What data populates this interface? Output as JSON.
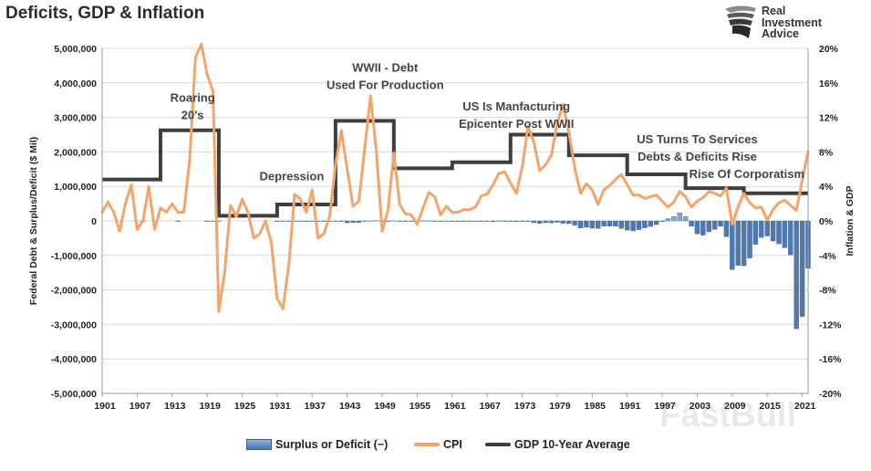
{
  "title": "Deficits, GDP & Inflation",
  "brand": {
    "line1": "Real",
    "line2": "Investment",
    "line3": "Advice",
    "logo_icon": "eagle-head-icon"
  },
  "watermark": "FastBull",
  "colors": {
    "cpi": "#F4A36A",
    "gdp": "#3E3E3E",
    "deficit": "#4E78AE",
    "surplus": "#7FA6D4",
    "grid": "#D9D9D9",
    "axis": "#9A9A9A"
  },
  "chart_data": {
    "type": "combo",
    "title": "Deficits, GDP & Inflation",
    "xlabel": "",
    "ylabel_left": "Federal Debt & Surplus/Deficit ($ Mil)",
    "ylabel_right": "Inflation & GDP",
    "ylim_left": [
      -5000000,
      5000000
    ],
    "ylim_right": [
      -20,
      20
    ],
    "x_range": [
      1901,
      2022
    ],
    "left_ticks": [
      {
        "value": 5000000,
        "label": "5,000,000"
      },
      {
        "value": 4000000,
        "label": "4,000,000"
      },
      {
        "value": 3000000,
        "label": "3,000,000"
      },
      {
        "value": 2000000,
        "label": "2,000,000"
      },
      {
        "value": 1000000,
        "label": "1,000,000"
      },
      {
        "value": 0,
        "label": "0"
      },
      {
        "value": -1000000,
        "label": "-1,000,000"
      },
      {
        "value": -2000000,
        "label": "-2,000,000"
      },
      {
        "value": -3000000,
        "label": "-3,000,000"
      },
      {
        "value": -4000000,
        "label": "-4,000,000"
      },
      {
        "value": -5000000,
        "label": "-5,000,000"
      }
    ],
    "right_ticks": [
      {
        "value": 20,
        "label": "20%"
      },
      {
        "value": 16,
        "label": "16%"
      },
      {
        "value": 12,
        "label": "12%"
      },
      {
        "value": 8,
        "label": "8%"
      },
      {
        "value": 4,
        "label": "4%"
      },
      {
        "value": 0,
        "label": "0%"
      },
      {
        "value": -4,
        "label": "-4%"
      },
      {
        "value": -8,
        "label": "-8%"
      },
      {
        "value": -12,
        "label": "-12%"
      },
      {
        "value": -16,
        "label": "-16%"
      },
      {
        "value": -20,
        "label": "-20%"
      }
    ],
    "x_ticks": [
      1901,
      1907,
      1913,
      1919,
      1925,
      1931,
      1937,
      1943,
      1949,
      1955,
      1961,
      1967,
      1973,
      1979,
      1985,
      1991,
      1997,
      2003,
      2009,
      2015,
      2021
    ],
    "series": [
      {
        "name": "Surplus or Deficit (−)",
        "type": "bar",
        "axis": "left",
        "years": [
          1908,
          1914,
          1919,
          1920,
          1921,
          1931,
          1932,
          1933,
          1934,
          1935,
          1936,
          1937,
          1938,
          1939,
          1940,
          1941,
          1942,
          1943,
          1944,
          1945,
          1946,
          1947,
          1948,
          1949,
          1950,
          1951,
          1952,
          1953,
          1954,
          1955,
          1956,
          1957,
          1958,
          1959,
          1960,
          1961,
          1962,
          1963,
          1964,
          1965,
          1966,
          1967,
          1968,
          1969,
          1970,
          1971,
          1972,
          1973,
          1974,
          1975,
          1976,
          1977,
          1978,
          1979,
          1980,
          1981,
          1982,
          1983,
          1984,
          1985,
          1986,
          1987,
          1988,
          1989,
          1990,
          1991,
          1992,
          1993,
          1994,
          1995,
          1996,
          1997,
          1998,
          1999,
          2000,
          2001,
          2002,
          2003,
          2004,
          2005,
          2006,
          2007,
          2008,
          2009,
          2010,
          2011,
          2012,
          2013,
          2014,
          2015,
          2016,
          2017,
          2018,
          2019,
          2020,
          2021,
          2022
        ],
        "values": [
          -57,
          -1,
          -13363,
          291,
          509,
          -462,
          -2735,
          -2602,
          -3630,
          -2791,
          -4425,
          -2193,
          -89,
          -2846,
          -2920,
          -4941,
          -20503,
          -54554,
          -47557,
          -47553,
          -15936,
          4018,
          11796,
          580,
          -3119,
          6102,
          -1519,
          -6493,
          -1154,
          -2993,
          3947,
          3412,
          -2769,
          -12849,
          301,
          -3335,
          -7146,
          -4756,
          -5915,
          -1411,
          -3698,
          -8643,
          -25161,
          3242,
          -2842,
          -23033,
          -23373,
          -14908,
          -6135,
          -53242,
          -73732,
          -53659,
          -59185,
          -40726,
          -73830,
          -78968,
          -127977,
          -207802,
          -185367,
          -212308,
          -221227,
          -149730,
          -155178,
          -152639,
          -221036,
          -269238,
          -290321,
          -255051,
          -203186,
          -163952,
          -107431,
          -21884,
          69270,
          125610,
          236241,
          128236,
          -157758,
          -377585,
          -412727,
          -318346,
          -248181,
          -160701,
          -458553,
          -1412688,
          -1294373,
          -1299599,
          -1076574,
          -679775,
          -484600,
          -438496,
          -584651,
          -665447,
          -779137,
          -983601,
          -3129854,
          -2775327,
          -1375000
        ]
      },
      {
        "name": "CPI",
        "type": "line",
        "axis": "right",
        "years": [
          1901,
          1902,
          1903,
          1904,
          1905,
          1906,
          1907,
          1908,
          1909,
          1910,
          1911,
          1912,
          1913,
          1914,
          1915,
          1916,
          1917,
          1918,
          1919,
          1920,
          1921,
          1922,
          1923,
          1924,
          1925,
          1926,
          1927,
          1928,
          1929,
          1930,
          1931,
          1932,
          1933,
          1934,
          1935,
          1936,
          1937,
          1938,
          1939,
          1940,
          1941,
          1942,
          1943,
          1944,
          1945,
          1946,
          1947,
          1948,
          1949,
          1950,
          1951,
          1952,
          1953,
          1954,
          1955,
          1956,
          1957,
          1958,
          1959,
          1960,
          1961,
          1962,
          1963,
          1964,
          1965,
          1966,
          1967,
          1968,
          1969,
          1970,
          1971,
          1972,
          1973,
          1974,
          1975,
          1976,
          1977,
          1978,
          1979,
          1980,
          1981,
          1982,
          1983,
          1984,
          1985,
          1986,
          1987,
          1988,
          1989,
          1990,
          1991,
          1992,
          1993,
          1994,
          1995,
          1996,
          1997,
          1998,
          1999,
          2000,
          2001,
          2002,
          2003,
          2004,
          2005,
          2006,
          2007,
          2008,
          2009,
          2010,
          2011,
          2012,
          2013,
          2014,
          2015,
          2016,
          2017,
          2018,
          2019,
          2020,
          2021,
          2022
        ],
        "values": [
          1.0,
          2.2,
          1.0,
          -1.2,
          2.0,
          4.2,
          -1.0,
          0.0,
          4.0,
          -1.0,
          1.5,
          1.0,
          2.0,
          1.0,
          1.0,
          7.0,
          19.0,
          20.5,
          17.0,
          15.0,
          -10.5,
          -6.0,
          1.8,
          0.5,
          2.5,
          1.0,
          -2.0,
          -1.5,
          0.0,
          -2.5,
          -9.0,
          -10.2,
          -5.1,
          3.1,
          2.5,
          1.0,
          3.6,
          -2.0,
          -1.5,
          0.5,
          6.5,
          10.5,
          6.0,
          1.7,
          2.3,
          8.3,
          14.5,
          8.1,
          -1.2,
          1.3,
          7.9,
          1.9,
          0.8,
          0.7,
          -0.4,
          1.5,
          3.3,
          2.8,
          0.7,
          1.7,
          1.0,
          1.0,
          1.3,
          1.3,
          1.6,
          2.9,
          3.1,
          4.2,
          5.5,
          5.7,
          4.4,
          3.2,
          6.2,
          11.0,
          9.1,
          5.8,
          6.5,
          7.6,
          11.3,
          13.5,
          10.3,
          6.2,
          3.2,
          4.3,
          3.6,
          1.9,
          3.6,
          4.1,
          4.8,
          5.4,
          4.2,
          3.0,
          3.0,
          2.6,
          2.8,
          3.0,
          2.3,
          1.6,
          2.2,
          3.4,
          2.8,
          1.6,
          2.3,
          2.7,
          3.4,
          3.2,
          2.9,
          3.8,
          -0.4,
          1.6,
          3.2,
          2.1,
          1.5,
          1.6,
          0.1,
          1.3,
          2.1,
          2.4,
          1.8,
          1.2,
          4.7,
          8.0
        ]
      },
      {
        "name": "GDP 10-Year Average",
        "type": "step",
        "axis": "right",
        "segments": [
          {
            "from": 1901,
            "to": 1911,
            "value": 4.8
          },
          {
            "from": 1911,
            "to": 1921,
            "value": 10.5
          },
          {
            "from": 1921,
            "to": 1931,
            "value": 0.6
          },
          {
            "from": 1931,
            "to": 1941,
            "value": 1.9
          },
          {
            "from": 1941,
            "to": 1951,
            "value": 11.6
          },
          {
            "from": 1951,
            "to": 1961,
            "value": 6.1
          },
          {
            "from": 1961,
            "to": 1971,
            "value": 6.8
          },
          {
            "from": 1971,
            "to": 1981,
            "value": 10.0
          },
          {
            "from": 1981,
            "to": 1991,
            "value": 7.6
          },
          {
            "from": 1991,
            "to": 2001,
            "value": 5.4
          },
          {
            "from": 2001,
            "to": 2011,
            "value": 3.8
          },
          {
            "from": 2011,
            "to": 2022,
            "value": 3.2
          }
        ]
      }
    ],
    "annotations": [
      {
        "text": "Roaring",
        "year": 1916.5,
        "value": 13.8
      },
      {
        "text": "20's",
        "year": 1916.5,
        "value": 11.8
      },
      {
        "text": "Depression",
        "year": 1933.5,
        "value": 4.7
      },
      {
        "text": "WWII - Debt",
        "year": 1949.5,
        "value": 17.3
      },
      {
        "text": "Used For Production",
        "year": 1949.5,
        "value": 15.3
      },
      {
        "text": "US Is Manfacturing",
        "year": 1972,
        "value": 12.8
      },
      {
        "text": "Epicenter Post WWII",
        "year": 1972,
        "value": 10.8
      },
      {
        "text": "US Turns To Services",
        "year": 2003,
        "value": 9.0
      },
      {
        "text": "Debts & Deficits Rise",
        "year": 2003,
        "value": 7.0
      },
      {
        "text": "Rise Of Corporatism",
        "year": 2011.5,
        "value": 5.0
      }
    ],
    "legend": {
      "placement": "bottom",
      "items": [
        "Surplus or Deficit (−)",
        "CPI",
        "GDP 10-Year Average"
      ]
    }
  }
}
